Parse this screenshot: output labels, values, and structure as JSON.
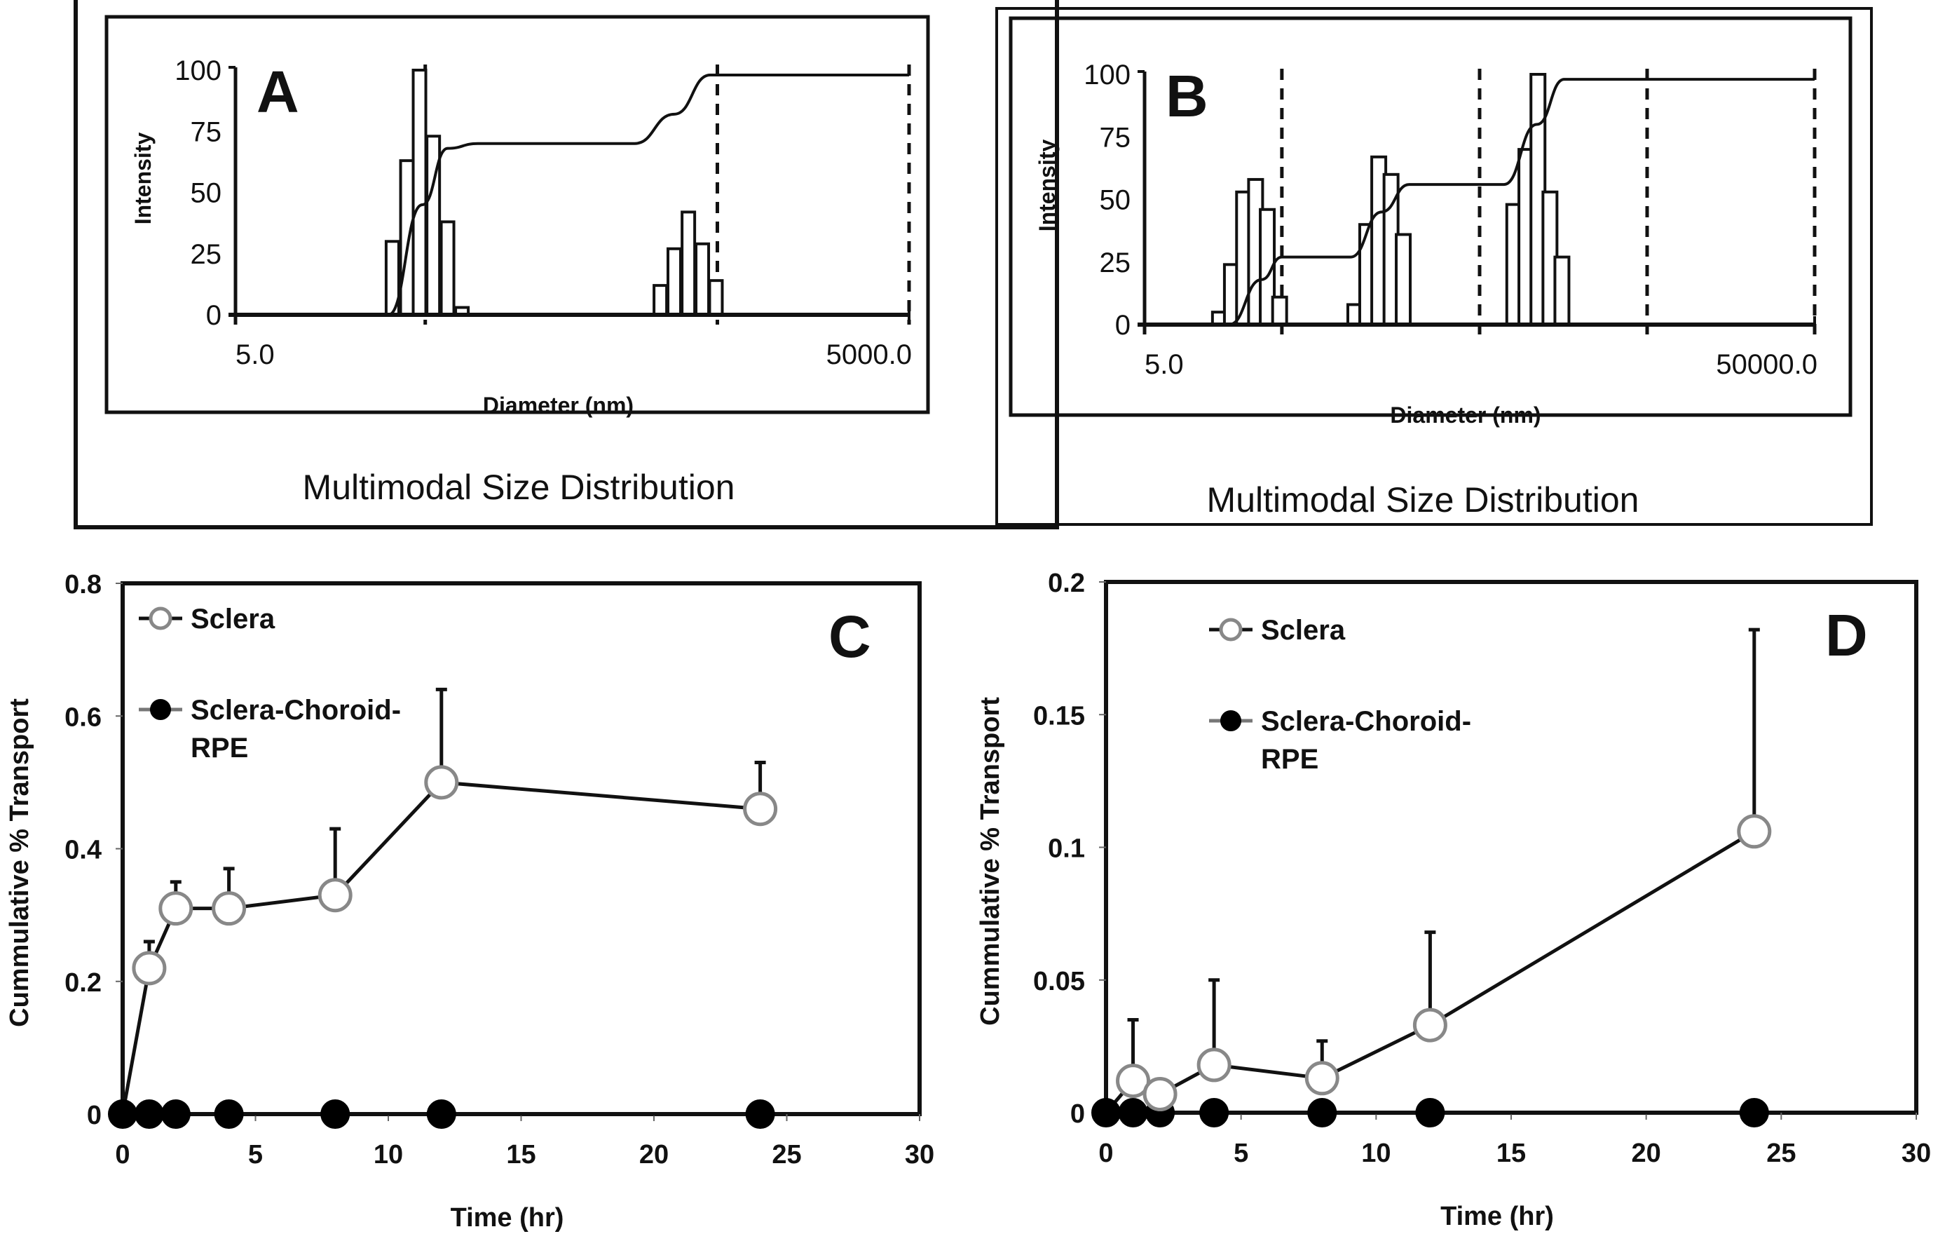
{
  "chart_data": [
    {
      "id": "A",
      "type": "bar",
      "panel_letter": "A",
      "caption": "Multimodal Size Distribution",
      "xlabel": "Diameter (nm)",
      "ylabel": "Intensity",
      "x_scale": "log",
      "x_tick_labels": [
        "5.0",
        "5000.0"
      ],
      "xlim": [
        5.0,
        5000.0
      ],
      "ylim": [
        0,
        100
      ],
      "y_ticks": [
        "0",
        "25",
        "50",
        "75",
        "100"
      ],
      "bins": [
        {
          "diameter": 25,
          "intensity": 30
        },
        {
          "diameter": 29,
          "intensity": 63
        },
        {
          "diameter": 33,
          "intensity": 100
        },
        {
          "diameter": 38,
          "intensity": 73
        },
        {
          "diameter": 44,
          "intensity": 38
        },
        {
          "diameter": 51,
          "intensity": 3
        },
        {
          "diameter": 390,
          "intensity": 12
        },
        {
          "diameter": 450,
          "intensity": 27
        },
        {
          "diameter": 520,
          "intensity": 42
        },
        {
          "diameter": 600,
          "intensity": 29
        },
        {
          "diameter": 690,
          "intensity": 14
        }
      ],
      "cumulative": [
        {
          "diameter": 24,
          "value": 0
        },
        {
          "diameter": 34,
          "value": 45
        },
        {
          "diameter": 44,
          "value": 68
        },
        {
          "diameter": 60,
          "value": 70
        },
        {
          "diameter": 300,
          "value": 70
        },
        {
          "diameter": 450,
          "value": 82
        },
        {
          "diameter": 650,
          "value": 98
        },
        {
          "diameter": 5000,
          "value": 98
        }
      ],
      "dashed_markers": [
        35,
        700,
        5000
      ]
    },
    {
      "id": "B",
      "type": "bar",
      "panel_letter": "B",
      "caption": "Multimodal Size Distribution",
      "xlabel": "Diameter (nm)",
      "ylabel": "Intensity",
      "x_scale": "log",
      "x_tick_labels": [
        "5.0",
        "50000.0"
      ],
      "xlim": [
        5.0,
        50000.0
      ],
      "ylim": [
        0,
        100
      ],
      "y_ticks": [
        "0",
        "25",
        "50",
        "75",
        "100"
      ],
      "bins": [
        {
          "diameter": 14,
          "intensity": 5
        },
        {
          "diameter": 16.5,
          "intensity": 24
        },
        {
          "diameter": 19.5,
          "intensity": 53
        },
        {
          "diameter": 23,
          "intensity": 58
        },
        {
          "diameter": 27,
          "intensity": 46
        },
        {
          "diameter": 32,
          "intensity": 11
        },
        {
          "diameter": 90,
          "intensity": 8
        },
        {
          "diameter": 106,
          "intensity": 40
        },
        {
          "diameter": 125,
          "intensity": 67
        },
        {
          "diameter": 148,
          "intensity": 60
        },
        {
          "diameter": 175,
          "intensity": 36
        },
        {
          "diameter": 800,
          "intensity": 48
        },
        {
          "diameter": 945,
          "intensity": 70
        },
        {
          "diameter": 1115,
          "intensity": 100
        },
        {
          "diameter": 1315,
          "intensity": 53
        },
        {
          "diameter": 1550,
          "intensity": 27
        }
      ],
      "cumulative": [
        {
          "diameter": 16,
          "value": 0
        },
        {
          "diameter": 25,
          "value": 18
        },
        {
          "diameter": 33,
          "value": 27
        },
        {
          "diameter": 85,
          "value": 27
        },
        {
          "diameter": 130,
          "value": 45
        },
        {
          "diameter": 190,
          "value": 56
        },
        {
          "diameter": 700,
          "value": 56
        },
        {
          "diameter": 1100,
          "value": 80
        },
        {
          "diameter": 1600,
          "value": 98
        },
        {
          "diameter": 50000,
          "value": 98
        }
      ],
      "dashed_markers": [
        33,
        500,
        5000,
        50000
      ]
    },
    {
      "id": "C",
      "type": "line",
      "panel_letter": "C",
      "xlabel": "Time (hr)",
      "ylabel": "Cummulative % Transport",
      "xlim": [
        0,
        30
      ],
      "ylim": [
        0,
        0.8
      ],
      "x_ticks": [
        "0",
        "5",
        "10",
        "15",
        "20",
        "25",
        "30"
      ],
      "y_ticks": [
        "0",
        "0.2",
        "0.4",
        "0.6",
        "0.8"
      ],
      "legend_position": "top-left",
      "x": [
        0,
        1,
        2,
        4,
        8,
        12,
        24
      ],
      "series": [
        {
          "name": "Sclera",
          "marker": "open-circle",
          "values": [
            0,
            0.22,
            0.31,
            0.31,
            0.33,
            0.5,
            0.46
          ],
          "error_upper": [
            0,
            0.26,
            0.35,
            0.37,
            0.43,
            0.64,
            0.53
          ]
        },
        {
          "name": "Sclera-Choroid-RPE",
          "legend_lines": [
            "Sclera-Choroid-",
            "RPE"
          ],
          "marker": "filled-circle",
          "values": [
            0,
            0,
            0,
            0,
            0,
            0,
            0
          ]
        }
      ]
    },
    {
      "id": "D",
      "type": "line",
      "panel_letter": "D",
      "xlabel": "Time (hr)",
      "ylabel": "Cummulative % Transport",
      "xlim": [
        0,
        30
      ],
      "ylim": [
        0,
        0.2
      ],
      "x_ticks": [
        "0",
        "5",
        "10",
        "15",
        "20",
        "25",
        "30"
      ],
      "y_ticks": [
        "0",
        "0.05",
        "0.1",
        "0.15",
        "0.2"
      ],
      "legend_position": "top-left",
      "x": [
        0,
        1,
        2,
        4,
        8,
        12,
        24
      ],
      "series": [
        {
          "name": "Sclera",
          "marker": "open-circle",
          "values": [
            0,
            0.012,
            0.007,
            0.018,
            0.013,
            0.033,
            0.106
          ],
          "error_upper": [
            0,
            0.035,
            null,
            0.05,
            0.027,
            0.068,
            0.182
          ]
        },
        {
          "name": "Sclera-Choroid-RPE",
          "legend_lines": [
            "Sclera-Choroid-",
            "RPE"
          ],
          "marker": "filled-circle",
          "values": [
            0,
            0,
            0,
            0,
            0,
            0,
            0
          ]
        }
      ]
    }
  ]
}
